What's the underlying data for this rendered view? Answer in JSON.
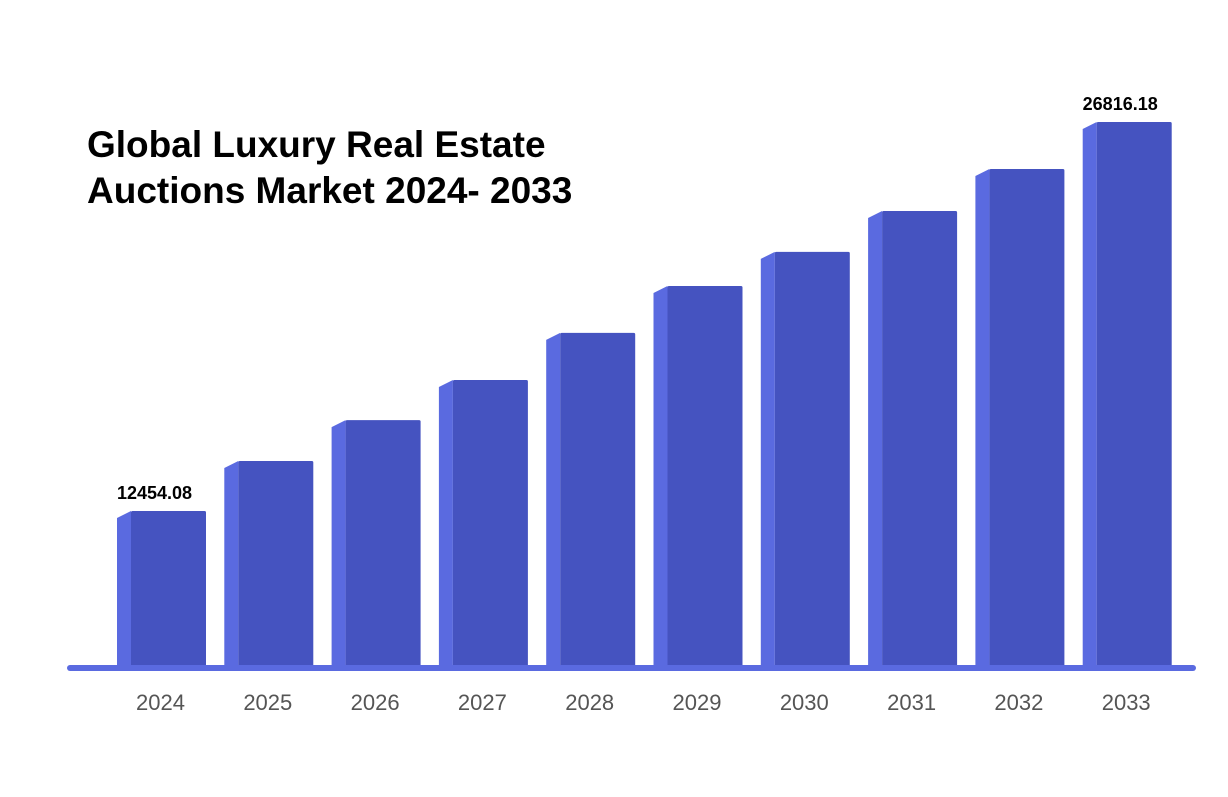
{
  "chart_data": {
    "type": "bar",
    "title": "Global Luxury Real Estate Auctions Market 2024- 2033",
    "title_lines": [
      "Global Luxury Real Estate",
      "Auctions Market 2024- 2033"
    ],
    "categories": [
      "2024",
      "2025",
      "2026",
      "2027",
      "2028",
      "2029",
      "2030",
      "2031",
      "2032",
      "2033"
    ],
    "values": [
      12454.08,
      14300,
      15810,
      17290,
      19030,
      20760,
      22020,
      23530,
      25080,
      26816.18
    ],
    "data_labels": {
      "0": "12454.08",
      "9": "26816.18"
    },
    "xlabel": "",
    "ylabel": "",
    "grid": false,
    "legend": "none",
    "colors": {
      "bar_front": "#4553c0",
      "bar_side": "#5a6ae0",
      "axis": "#5a6ae0",
      "tick_label": "#555555"
    }
  }
}
